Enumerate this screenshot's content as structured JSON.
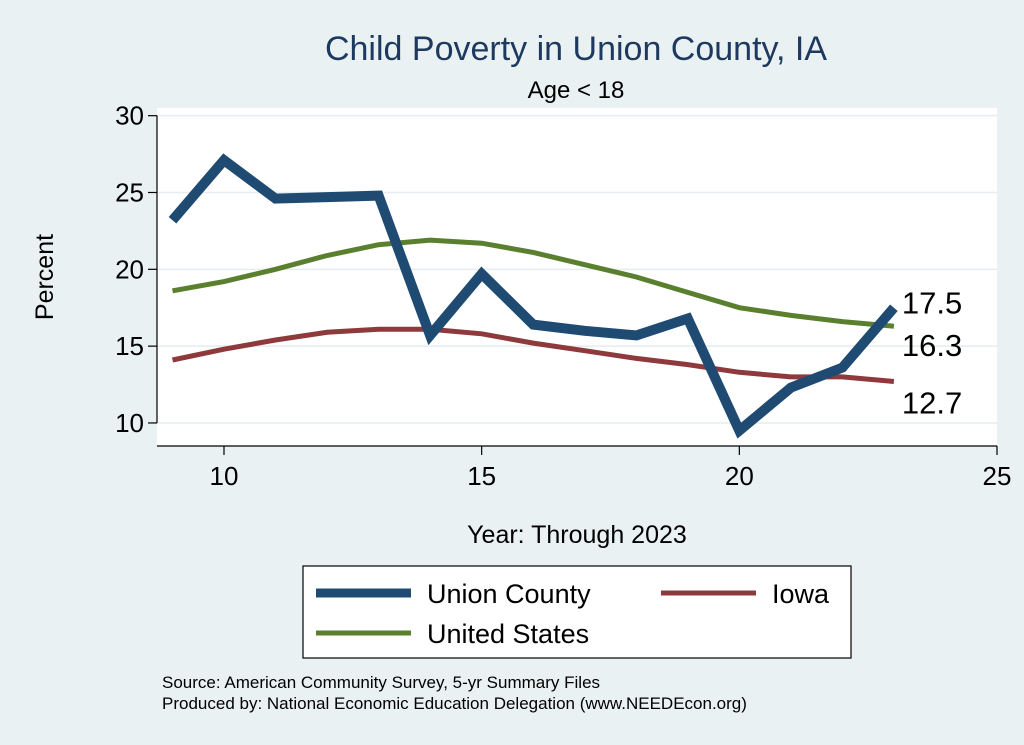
{
  "chart_data": {
    "type": "line",
    "title": "Child Poverty in Union County, IA",
    "subtitle": "Age < 18",
    "xlabel": "Year: Through 2023",
    "ylabel": "Percent",
    "xlim": [
      8.7,
      25
    ],
    "ylim": [
      8.5,
      30.5
    ],
    "x_ticks": [
      10,
      15,
      20,
      25
    ],
    "y_ticks": [
      10,
      15,
      20,
      25,
      30
    ],
    "grid": true,
    "legend_position": "bottom",
    "series": [
      {
        "name": "Union County",
        "color": "#1f4b73",
        "x": [
          9,
          10,
          11,
          12,
          13,
          14,
          15,
          16,
          17,
          18,
          19,
          20,
          21,
          22,
          23
        ],
        "values": [
          23.2,
          27.1,
          24.6,
          24.7,
          24.8,
          15.7,
          19.7,
          16.4,
          16.0,
          15.7,
          16.8,
          9.5,
          12.3,
          13.6,
          17.5
        ],
        "end_label": "17.5"
      },
      {
        "name": "Iowa",
        "color": "#8e3a3c",
        "x": [
          9,
          10,
          11,
          12,
          13,
          14,
          15,
          16,
          17,
          18,
          19,
          20,
          21,
          22,
          23
        ],
        "values": [
          14.1,
          14.8,
          15.4,
          15.9,
          16.1,
          16.1,
          15.8,
          15.2,
          14.7,
          14.2,
          13.8,
          13.3,
          13.0,
          13.0,
          12.7
        ],
        "end_label": "12.7"
      },
      {
        "name": "United States",
        "color": "#5a7f2e",
        "x": [
          9,
          10,
          11,
          12,
          13,
          14,
          15,
          16,
          17,
          18,
          19,
          20,
          21,
          22,
          23
        ],
        "values": [
          18.6,
          19.2,
          20.0,
          20.9,
          21.6,
          21.9,
          21.7,
          21.1,
          20.3,
          19.5,
          18.5,
          17.5,
          17.0,
          16.6,
          16.3
        ],
        "end_label": "16.3"
      }
    ]
  },
  "notes": {
    "source": "Source: American Community Survey, 5-yr Summary Files",
    "produced_by": "Produced by: National Economic Education Delegation (www.NEEDEcon.org)"
  }
}
